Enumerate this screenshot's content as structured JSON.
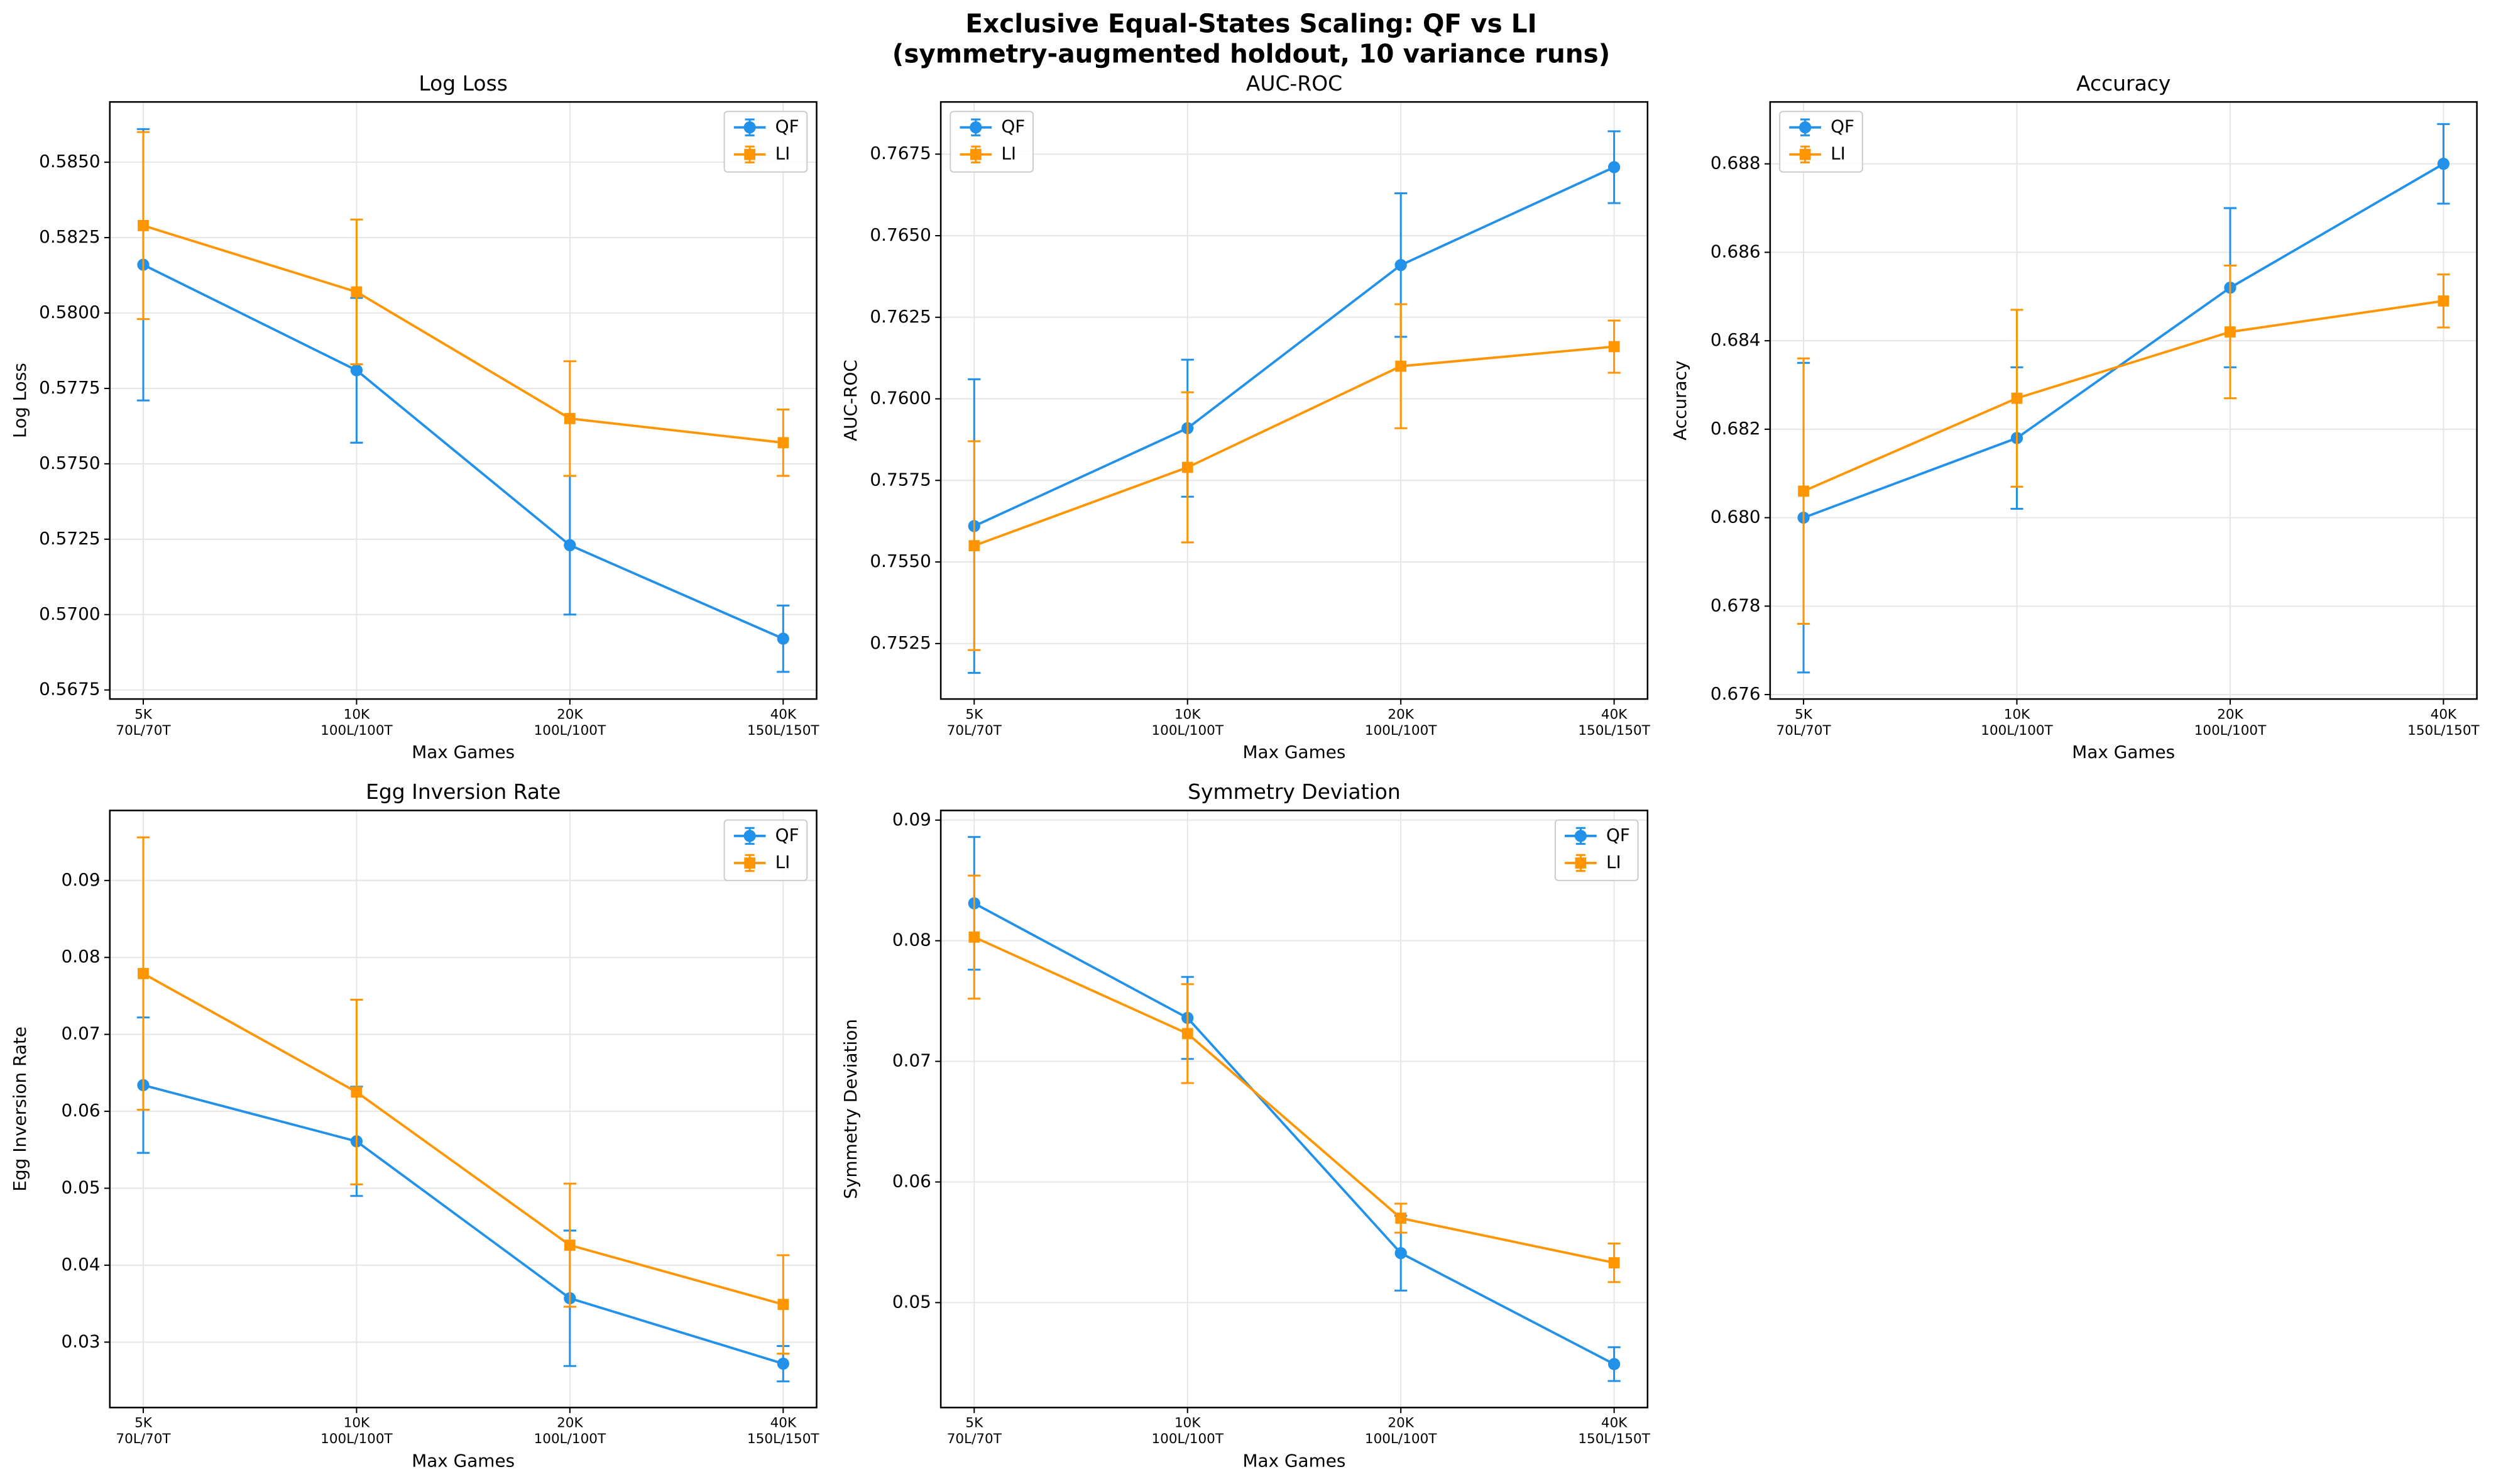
{
  "title": [
    "Exclusive Equal-States Scaling: QF vs LI",
    "(symmetry-augmented holdout, 10 variance runs)"
  ],
  "chart_data": [
    {
      "type": "line",
      "title": "Log Loss",
      "x_label": "Max Games",
      "y_label": "Log Loss",
      "categories": [
        "5K",
        "10K",
        "20K",
        "40K"
      ],
      "category_sublabels": [
        "70L/70T",
        "100L/100T",
        "100L/100T",
        "150L/150T"
      ],
      "ylim": [
        0.5672,
        0.587
      ],
      "yticks": [
        {
          "value": 0.5675,
          "label": "0.5675"
        },
        {
          "value": 0.57,
          "label": "0.5700"
        },
        {
          "value": 0.5725,
          "label": "0.5725"
        },
        {
          "value": 0.575,
          "label": "0.5750"
        },
        {
          "value": 0.5775,
          "label": "0.5775"
        },
        {
          "value": 0.58,
          "label": "0.5800"
        },
        {
          "value": 0.5825,
          "label": "0.5825"
        },
        {
          "value": 0.585,
          "label": "0.5850"
        }
      ],
      "grid": true,
      "legend": "upper-right",
      "series": [
        {
          "name": "QF",
          "color": "#2191ea",
          "marker": "circle",
          "values": [
            0.5816,
            0.5781,
            0.5723,
            0.5692
          ],
          "errors": [
            0.0045,
            0.0024,
            0.0023,
            0.0011
          ]
        },
        {
          "name": "LI",
          "color": "#ff9500",
          "marker": "square",
          "values": [
            0.5829,
            0.5807,
            0.5765,
            0.5757
          ],
          "errors": [
            0.0031,
            0.0024,
            0.0019,
            0.0011
          ]
        }
      ]
    },
    {
      "type": "line",
      "title": "AUC-ROC",
      "x_label": "Max Games",
      "y_label": "AUC-ROC",
      "categories": [
        "5K",
        "10K",
        "20K",
        "40K"
      ],
      "category_sublabels": [
        "70L/70T",
        "100L/100T",
        "100L/100T",
        "150L/150T"
      ],
      "ylim": [
        0.7508,
        0.7691
      ],
      "yticks": [
        0.7525,
        {
          "value": 0.755,
          "label": "0.7550"
        },
        0.7575,
        {
          "value": 0.76,
          "label": "0.7600"
        },
        0.7625,
        {
          "value": 0.765,
          "label": "0.7650"
        },
        0.7675
      ],
      "grid": true,
      "legend": "upper-left",
      "series": [
        {
          "name": "QF",
          "color": "#2191ea",
          "marker": "circle",
          "values": [
            0.7561,
            0.7591,
            0.7641,
            0.7671
          ],
          "errors": [
            0.0045,
            0.0021,
            0.0022,
            0.0011
          ]
        },
        {
          "name": "LI",
          "color": "#ff9500",
          "marker": "square",
          "values": [
            0.7555,
            0.7579,
            0.761,
            0.7616
          ],
          "errors": [
            0.0032,
            0.0023,
            0.0019,
            0.0008
          ]
        }
      ]
    },
    {
      "type": "line",
      "title": "Accuracy",
      "x_label": "Max Games",
      "y_label": "Accuracy",
      "categories": [
        "5K",
        "10K",
        "20K",
        "40K"
      ],
      "category_sublabels": [
        "70L/70T",
        "100L/100T",
        "100L/100T",
        "150L/150T"
      ],
      "ylim": [
        0.6759,
        0.6894
      ],
      "yticks": [
        0.676,
        0.678,
        {
          "value": 0.68,
          "label": "0.680"
        },
        0.682,
        0.684,
        0.686,
        0.688
      ],
      "grid": true,
      "legend": "upper-left",
      "series": [
        {
          "name": "QF",
          "color": "#2191ea",
          "marker": "circle",
          "values": [
            0.68,
            0.6818,
            0.6852,
            0.688
          ],
          "errors": [
            0.0035,
            0.0016,
            0.0018,
            0.0009
          ]
        },
        {
          "name": "LI",
          "color": "#ff9500",
          "marker": "square",
          "values": [
            0.6806,
            0.6827,
            0.6842,
            0.6849
          ],
          "errors": [
            0.003,
            0.002,
            0.0015,
            0.0006
          ]
        }
      ]
    },
    {
      "type": "line",
      "title": "Egg Inversion Rate",
      "x_label": "Max Games",
      "y_label": "Egg Inversion Rate",
      "categories": [
        "5K",
        "10K",
        "20K",
        "40K"
      ],
      "category_sublabels": [
        "70L/70T",
        "100L/100T",
        "100L/100T",
        "150L/150T"
      ],
      "ylim": [
        0.0215,
        0.0991
      ],
      "yticks": [
        0.03,
        0.04,
        0.05,
        0.06,
        0.07,
        0.08,
        0.09
      ],
      "grid": true,
      "legend": "upper-right",
      "series": [
        {
          "name": "QF",
          "color": "#2191ea",
          "marker": "circle",
          "values": [
            0.0634,
            0.0561,
            0.0357,
            0.0272
          ],
          "errors": [
            0.0088,
            0.0071,
            0.0088,
            0.0023
          ]
        },
        {
          "name": "LI",
          "color": "#ff9500",
          "marker": "square",
          "values": [
            0.0779,
            0.0625,
            0.0426,
            0.0349
          ],
          "errors": [
            0.0177,
            0.012,
            0.008,
            0.0064
          ]
        }
      ]
    },
    {
      "type": "line",
      "title": "Symmetry Deviation",
      "x_label": "Max Games",
      "y_label": "Symmetry Deviation",
      "categories": [
        "5K",
        "10K",
        "20K",
        "40K"
      ],
      "category_sublabels": [
        "70L/70T",
        "100L/100T",
        "100L/100T",
        "150L/150T"
      ],
      "ylim": [
        0.0413,
        0.0908
      ],
      "yticks": [
        0.05,
        0.06,
        0.07,
        0.08,
        0.09
      ],
      "grid": true,
      "legend": "upper-right",
      "series": [
        {
          "name": "QF",
          "color": "#2191ea",
          "marker": "circle",
          "values": [
            0.0831,
            0.0736,
            0.0541,
            0.0449
          ],
          "errors": [
            0.0055,
            0.0034,
            0.0031,
            0.0014
          ]
        },
        {
          "name": "LI",
          "color": "#ff9500",
          "marker": "square",
          "values": [
            0.0803,
            0.0723,
            0.057,
            0.0533
          ],
          "errors": [
            0.0051,
            0.0041,
            0.0012,
            0.0016
          ]
        }
      ]
    }
  ]
}
